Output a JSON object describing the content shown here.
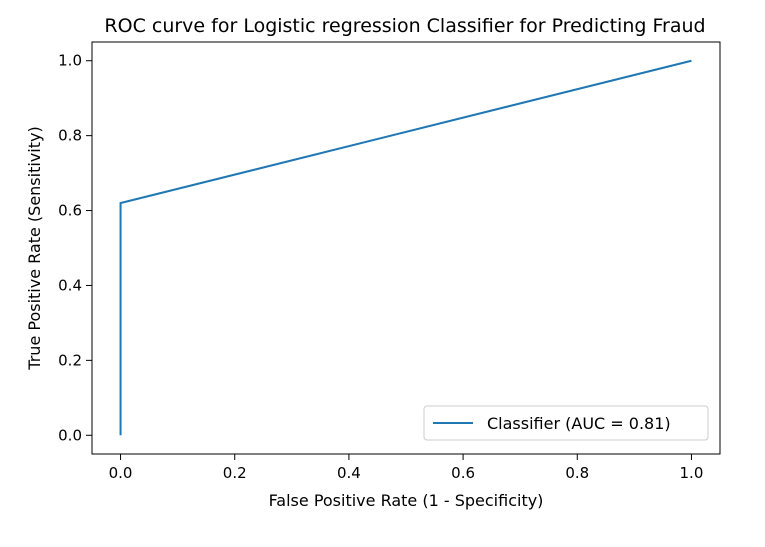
{
  "chart_data": {
    "type": "line",
    "title": "ROC curve for Logistic regression Classifier for Predicting Fraud",
    "xlabel": "False Positive Rate (1 - Specificity)",
    "ylabel": "True Positive Rate (Sensitivity)",
    "xlim": [
      -0.05,
      1.05
    ],
    "ylim": [
      -0.05,
      1.05
    ],
    "xticks": [
      0.0,
      0.2,
      0.4,
      0.6,
      0.8,
      1.0
    ],
    "yticks": [
      0.0,
      0.2,
      0.4,
      0.6,
      0.8,
      1.0
    ],
    "xtick_labels": [
      "0.0",
      "0.2",
      "0.4",
      "0.6",
      "0.8",
      "1.0"
    ],
    "ytick_labels": [
      "0.0",
      "0.2",
      "0.4",
      "0.6",
      "0.8",
      "1.0"
    ],
    "grid": false,
    "legend_position": "bottom-right",
    "series": [
      {
        "name": "Classifier (AUC = 0.81)",
        "color": "#1f77b4",
        "x": [
          0.0,
          0.0,
          1.0
        ],
        "y": [
          0.0,
          0.62,
          1.0
        ]
      }
    ]
  }
}
